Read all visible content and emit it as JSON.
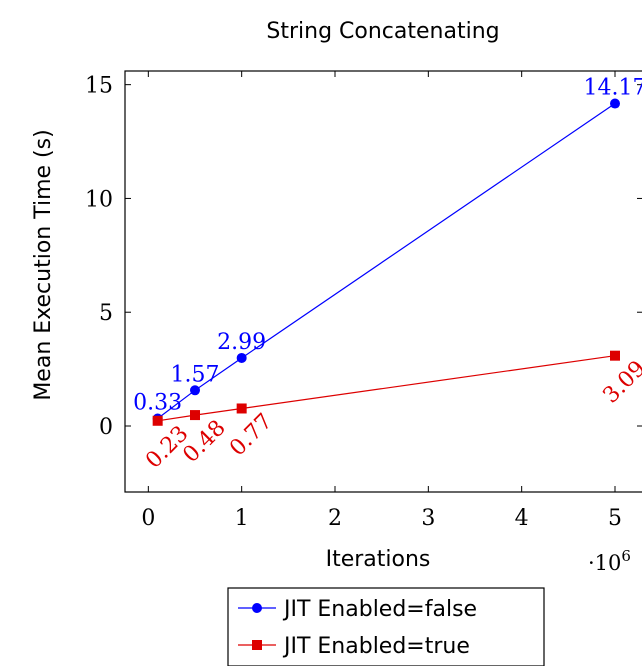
{
  "chart_data": {
    "type": "line",
    "title": "String Concatenating",
    "xlabel": "Iterations",
    "ylabel": "Mean Execution Time (s)",
    "x_multiplier_label": "·10",
    "x_multiplier_exponent": "6",
    "xlim": [
      -0.25,
      5.3
    ],
    "ylim": [
      -2.9,
      15.6
    ],
    "x_ticks": [
      0,
      1,
      2,
      3,
      4,
      5
    ],
    "x_tick_labels": [
      "0",
      "1",
      "2",
      "3",
      "4",
      "5"
    ],
    "y_ticks": [
      0,
      5,
      10,
      15
    ],
    "y_tick_labels": [
      "0",
      "5",
      "10",
      "15"
    ],
    "grid": false,
    "legend_placement": "below",
    "series": [
      {
        "name": "JIT Enabled=false",
        "color": "#0000ff",
        "marker": "circle",
        "x": [
          0.1,
          0.5,
          1,
          5
        ],
        "values": [
          0.33,
          1.57,
          2.99,
          14.17
        ],
        "labels": [
          "0.33",
          "1.57",
          "2.99",
          "14.17"
        ],
        "label_position": "above"
      },
      {
        "name": "JIT Enabled=true",
        "color": "#dd0000",
        "marker": "square",
        "x": [
          0.1,
          0.5,
          1,
          5
        ],
        "values": [
          0.23,
          0.48,
          0.77,
          3.09
        ],
        "labels": [
          "0.23",
          "0.48",
          "0.77",
          "3.09"
        ],
        "label_position": "below-rotated"
      }
    ]
  }
}
